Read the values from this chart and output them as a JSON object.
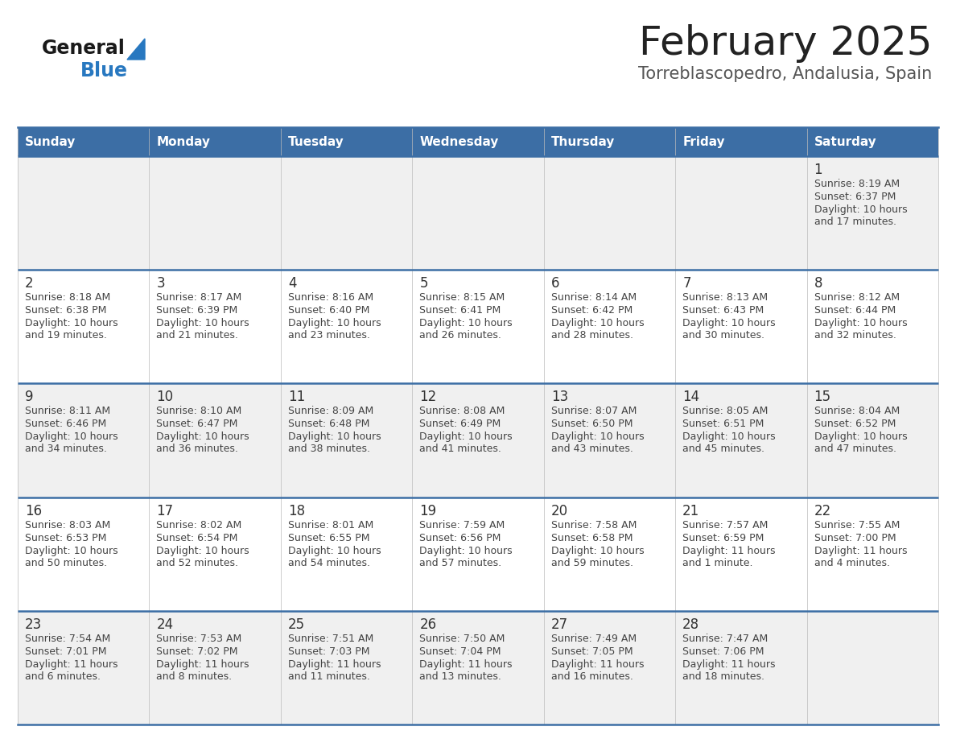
{
  "title": "February 2025",
  "subtitle": "Torreblascopedro, Andalusia, Spain",
  "days_of_week": [
    "Sunday",
    "Monday",
    "Tuesday",
    "Wednesday",
    "Thursday",
    "Friday",
    "Saturday"
  ],
  "header_bg": "#3c6ea5",
  "header_text": "#ffffff",
  "cell_bg_odd": "#f0f0f0",
  "cell_bg_even": "#ffffff",
  "cell_border": "#3c6ea5",
  "title_color": "#222222",
  "subtitle_color": "#555555",
  "day_number_color": "#333333",
  "cell_text_color": "#444444",
  "logo_general_color": "#1a1a1a",
  "logo_blue_color": "#2878c0",
  "calendar_data": [
    [
      null,
      null,
      null,
      null,
      null,
      null,
      {
        "day": "1",
        "sunrise": "8:19 AM",
        "sunset": "6:37 PM",
        "daylight_line1": "Daylight: 10 hours",
        "daylight_line2": "and 17 minutes."
      }
    ],
    [
      {
        "day": "2",
        "sunrise": "8:18 AM",
        "sunset": "6:38 PM",
        "daylight_line1": "Daylight: 10 hours",
        "daylight_line2": "and 19 minutes."
      },
      {
        "day": "3",
        "sunrise": "8:17 AM",
        "sunset": "6:39 PM",
        "daylight_line1": "Daylight: 10 hours",
        "daylight_line2": "and 21 minutes."
      },
      {
        "day": "4",
        "sunrise": "8:16 AM",
        "sunset": "6:40 PM",
        "daylight_line1": "Daylight: 10 hours",
        "daylight_line2": "and 23 minutes."
      },
      {
        "day": "5",
        "sunrise": "8:15 AM",
        "sunset": "6:41 PM",
        "daylight_line1": "Daylight: 10 hours",
        "daylight_line2": "and 26 minutes."
      },
      {
        "day": "6",
        "sunrise": "8:14 AM",
        "sunset": "6:42 PM",
        "daylight_line1": "Daylight: 10 hours",
        "daylight_line2": "and 28 minutes."
      },
      {
        "day": "7",
        "sunrise": "8:13 AM",
        "sunset": "6:43 PM",
        "daylight_line1": "Daylight: 10 hours",
        "daylight_line2": "and 30 minutes."
      },
      {
        "day": "8",
        "sunrise": "8:12 AM",
        "sunset": "6:44 PM",
        "daylight_line1": "Daylight: 10 hours",
        "daylight_line2": "and 32 minutes."
      }
    ],
    [
      {
        "day": "9",
        "sunrise": "8:11 AM",
        "sunset": "6:46 PM",
        "daylight_line1": "Daylight: 10 hours",
        "daylight_line2": "and 34 minutes."
      },
      {
        "day": "10",
        "sunrise": "8:10 AM",
        "sunset": "6:47 PM",
        "daylight_line1": "Daylight: 10 hours",
        "daylight_line2": "and 36 minutes."
      },
      {
        "day": "11",
        "sunrise": "8:09 AM",
        "sunset": "6:48 PM",
        "daylight_line1": "Daylight: 10 hours",
        "daylight_line2": "and 38 minutes."
      },
      {
        "day": "12",
        "sunrise": "8:08 AM",
        "sunset": "6:49 PM",
        "daylight_line1": "Daylight: 10 hours",
        "daylight_line2": "and 41 minutes."
      },
      {
        "day": "13",
        "sunrise": "8:07 AM",
        "sunset": "6:50 PM",
        "daylight_line1": "Daylight: 10 hours",
        "daylight_line2": "and 43 minutes."
      },
      {
        "day": "14",
        "sunrise": "8:05 AM",
        "sunset": "6:51 PM",
        "daylight_line1": "Daylight: 10 hours",
        "daylight_line2": "and 45 minutes."
      },
      {
        "day": "15",
        "sunrise": "8:04 AM",
        "sunset": "6:52 PM",
        "daylight_line1": "Daylight: 10 hours",
        "daylight_line2": "and 47 minutes."
      }
    ],
    [
      {
        "day": "16",
        "sunrise": "8:03 AM",
        "sunset": "6:53 PM",
        "daylight_line1": "Daylight: 10 hours",
        "daylight_line2": "and 50 minutes."
      },
      {
        "day": "17",
        "sunrise": "8:02 AM",
        "sunset": "6:54 PM",
        "daylight_line1": "Daylight: 10 hours",
        "daylight_line2": "and 52 minutes."
      },
      {
        "day": "18",
        "sunrise": "8:01 AM",
        "sunset": "6:55 PM",
        "daylight_line1": "Daylight: 10 hours",
        "daylight_line2": "and 54 minutes."
      },
      {
        "day": "19",
        "sunrise": "7:59 AM",
        "sunset": "6:56 PM",
        "daylight_line1": "Daylight: 10 hours",
        "daylight_line2": "and 57 minutes."
      },
      {
        "day": "20",
        "sunrise": "7:58 AM",
        "sunset": "6:58 PM",
        "daylight_line1": "Daylight: 10 hours",
        "daylight_line2": "and 59 minutes."
      },
      {
        "day": "21",
        "sunrise": "7:57 AM",
        "sunset": "6:59 PM",
        "daylight_line1": "Daylight: 11 hours",
        "daylight_line2": "and 1 minute."
      },
      {
        "day": "22",
        "sunrise": "7:55 AM",
        "sunset": "7:00 PM",
        "daylight_line1": "Daylight: 11 hours",
        "daylight_line2": "and 4 minutes."
      }
    ],
    [
      {
        "day": "23",
        "sunrise": "7:54 AM",
        "sunset": "7:01 PM",
        "daylight_line1": "Daylight: 11 hours",
        "daylight_line2": "and 6 minutes."
      },
      {
        "day": "24",
        "sunrise": "7:53 AM",
        "sunset": "7:02 PM",
        "daylight_line1": "Daylight: 11 hours",
        "daylight_line2": "and 8 minutes."
      },
      {
        "day": "25",
        "sunrise": "7:51 AM",
        "sunset": "7:03 PM",
        "daylight_line1": "Daylight: 11 hours",
        "daylight_line2": "and 11 minutes."
      },
      {
        "day": "26",
        "sunrise": "7:50 AM",
        "sunset": "7:04 PM",
        "daylight_line1": "Daylight: 11 hours",
        "daylight_line2": "and 13 minutes."
      },
      {
        "day": "27",
        "sunrise": "7:49 AM",
        "sunset": "7:05 PM",
        "daylight_line1": "Daylight: 11 hours",
        "daylight_line2": "and 16 minutes."
      },
      {
        "day": "28",
        "sunrise": "7:47 AM",
        "sunset": "7:06 PM",
        "daylight_line1": "Daylight: 11 hours",
        "daylight_line2": "and 18 minutes."
      },
      null
    ]
  ],
  "figsize": [
    11.88,
    9.18
  ],
  "dpi": 100
}
